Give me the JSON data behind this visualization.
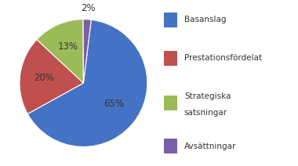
{
  "values": [
    65,
    20,
    13,
    2
  ],
  "colors": [
    "#4472C4",
    "#C0504D",
    "#9BBB59",
    "#7B5EA7"
  ],
  "pct_labels": [
    "65%",
    "20%",
    "13%",
    "2%"
  ],
  "legend_labels": [
    "Basanslag",
    "Prestationsfördelat",
    "Strategiska\nsatsningar",
    "Avsättningar"
  ],
  "background_color": "#ffffff",
  "font_size": 8.5,
  "legend_font_size": 7.5,
  "startangle": 83,
  "label_radii": [
    0.58,
    0.62,
    0.62,
    1.18
  ],
  "label_colors": [
    "#333333",
    "#333333",
    "#333333",
    "#333333"
  ]
}
